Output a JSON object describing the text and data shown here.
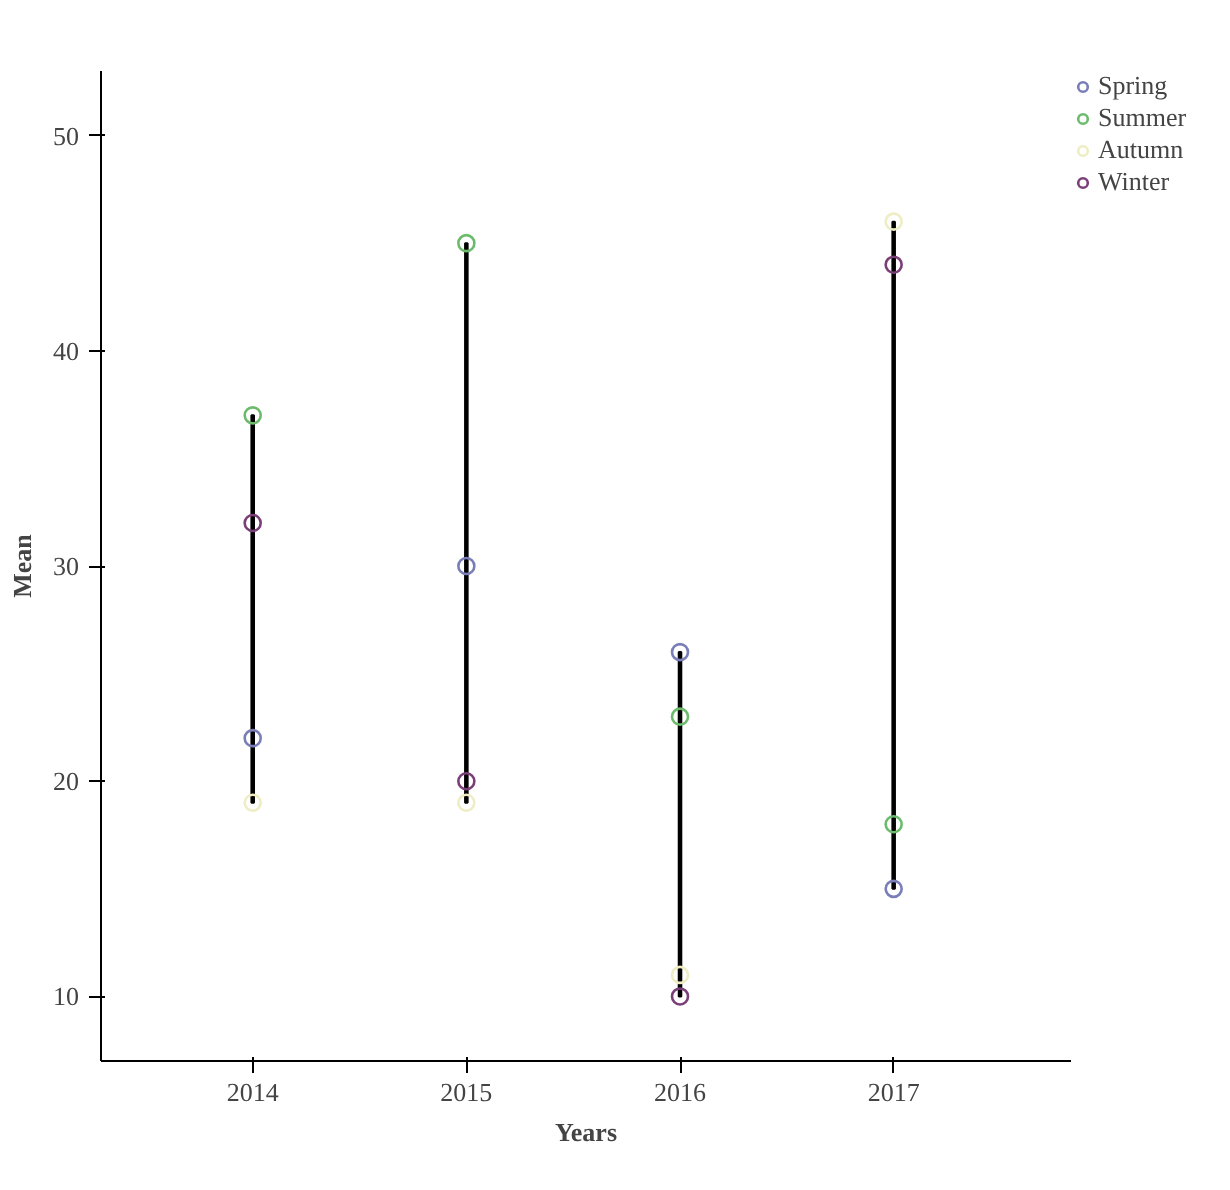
{
  "chart_data": {
    "type": "scatter",
    "xlabel": "Years",
    "ylabel": "Mean",
    "categories": [
      "2014",
      "2015",
      "2016",
      "2017"
    ],
    "ylim": [
      7,
      53
    ],
    "yticks": [
      10,
      20,
      30,
      40,
      50
    ],
    "legend": "top right",
    "marker": "circle",
    "series": [
      {
        "type": "bar",
        "color": "#000000",
        "base": [
          19,
          19,
          10,
          15
        ],
        "values": [
          18,
          26,
          16,
          31
        ]
      },
      {
        "name": "Spring",
        "color": "#7a7eb8",
        "values": [
          22,
          30,
          26,
          15
        ]
      },
      {
        "name": "Summer",
        "color": "#6cbb6c",
        "values": [
          37,
          45,
          23,
          18
        ]
      },
      {
        "name": "Autumn",
        "color": "#eeedc4",
        "values": [
          19,
          19,
          11,
          46
        ]
      },
      {
        "name": "Winter",
        "color": "#7b3f78",
        "values": [
          32,
          20,
          10,
          44
        ]
      }
    ]
  }
}
